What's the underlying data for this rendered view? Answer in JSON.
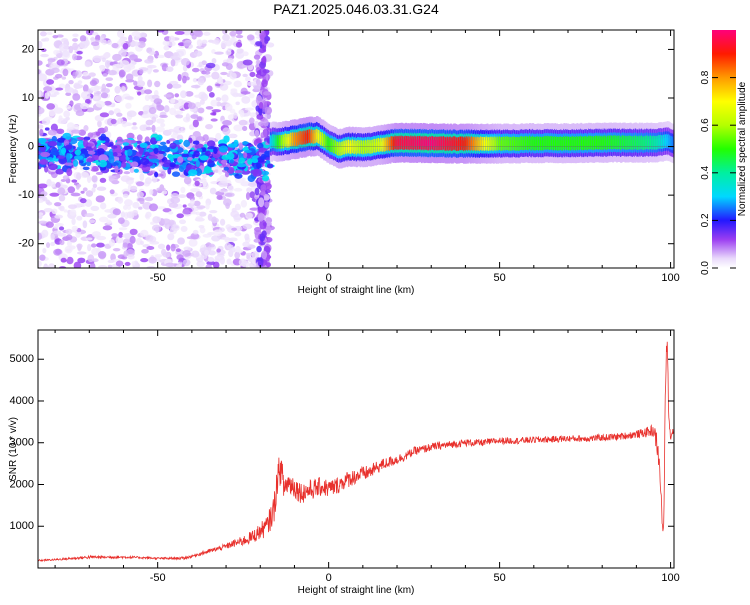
{
  "title": "PAZ1.2025.046.03.31.G24",
  "spectrogram": {
    "type": "heatmap",
    "xlabel": "Height of straight line (km)",
    "ylabel": "Frequency (Hz)",
    "xlim": [
      -85,
      101
    ],
    "ylim": [
      -25,
      24
    ],
    "xticks": [
      -50,
      0,
      50,
      100
    ],
    "yticks": [
      -20,
      -10,
      0,
      10,
      20
    ],
    "colorbar": {
      "label": "Normalized spectral amplitude",
      "ticks": [
        0.0,
        0.2,
        0.4,
        0.6,
        0.8
      ],
      "range": [
        0,
        1
      ]
    },
    "ridge": {
      "x": [
        -17,
        -14,
        -10,
        -6,
        -3,
        0,
        3,
        6,
        10,
        15,
        20,
        30,
        40,
        50,
        60,
        70,
        80,
        90,
        96,
        99,
        101
      ],
      "y": [
        1.0,
        1.0,
        1.5,
        2.0,
        2.2,
        0.5,
        -0.5,
        0.0,
        -0.2,
        0.3,
        0.8,
        0.7,
        0.6,
        0.6,
        0.7,
        0.7,
        0.8,
        0.8,
        0.8,
        1.2,
        0.5
      ],
      "amplitude": [
        0.3,
        0.55,
        0.8,
        0.9,
        0.7,
        0.5,
        0.6,
        0.7,
        0.6,
        0.65,
        0.95,
        1.0,
        0.9,
        0.55,
        0.5,
        0.5,
        0.5,
        0.45,
        0.4,
        0.3,
        0.25
      ]
    }
  },
  "snr": {
    "type": "line",
    "xlabel": "Height of straight line (km)",
    "ylabel": "SNR (10 * v/v)",
    "xlim": [
      -85,
      101
    ],
    "ylim": [
      0,
      5700
    ],
    "xticks": [
      -50,
      0,
      50,
      100
    ],
    "yticks": [
      1000,
      2000,
      3000,
      4000,
      5000
    ],
    "color": "#e8302c",
    "x": [
      -85,
      -80,
      -75,
      -70,
      -65,
      -60,
      -55,
      -50,
      -45,
      -42,
      -40,
      -38,
      -35,
      -32,
      -30,
      -28,
      -25,
      -22,
      -20,
      -18,
      -16,
      -15,
      -14,
      -13,
      -12,
      -10,
      -8,
      -6,
      -4,
      -2,
      0,
      2,
      5,
      8,
      10,
      12,
      15,
      18,
      20,
      23,
      25,
      28,
      30,
      35,
      40,
      45,
      50,
      55,
      60,
      65,
      70,
      75,
      80,
      85,
      90,
      93,
      95,
      96,
      97,
      97.5,
      98,
      98.5,
      99,
      99.5,
      100,
      101
    ],
    "y": [
      180,
      200,
      230,
      260,
      260,
      260,
      250,
      230,
      230,
      240,
      280,
      330,
      400,
      470,
      520,
      580,
      650,
      760,
      880,
      1000,
      1400,
      2150,
      2400,
      1900,
      2050,
      1950,
      1800,
      1850,
      1900,
      1950,
      1900,
      1950,
      2100,
      2200,
      2250,
      2300,
      2450,
      2550,
      2600,
      2700,
      2800,
      2850,
      2900,
      2950,
      3000,
      3000,
      3050,
      3050,
      3070,
      3080,
      3100,
      3100,
      3120,
      3150,
      3200,
      3250,
      3300,
      3000,
      2200,
      1100,
      900,
      4400,
      5600,
      3500,
      3200,
      3300
    ],
    "noise_amplitude": [
      20,
      20,
      30,
      40,
      30,
      30,
      25,
      25,
      30,
      30,
      35,
      40,
      50,
      60,
      70,
      90,
      120,
      160,
      200,
      250,
      350,
      400,
      380,
      350,
      300,
      280,
      260,
      250,
      240,
      230,
      220,
      210,
      200,
      190,
      180,
      170,
      150,
      130,
      120,
      110,
      100,
      100,
      95,
      90,
      85,
      85,
      80,
      80,
      80,
      80,
      80,
      80,
      80,
      85,
      90,
      120,
      150,
      250,
      300,
      200,
      150,
      300,
      200,
      150,
      120,
      100
    ]
  }
}
